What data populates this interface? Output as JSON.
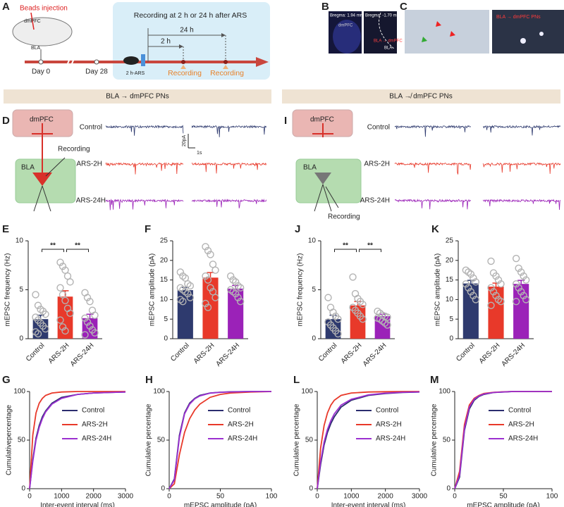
{
  "panel_a": {
    "letter": "A",
    "injection": "Beads injection",
    "region_top": "dmPFC",
    "region_bottom": "BLA",
    "day_start": "Day 0",
    "day_later": "Day 28",
    "stress": "2 h-ARS",
    "box_title": "Recording at 2 h or 24 h after ARS",
    "long_interval": "24 h",
    "short_interval": "2 h",
    "recording_early": "Recording",
    "recording_late": "Recording"
  },
  "panel_b": {
    "letter": "B",
    "bregma_front": "Bregma: 1.94 mm",
    "region_front": "dmPFC",
    "bregma_back": "Bregma: -1.70 mm",
    "projection": "BLA → dmPFC",
    "region_back": "BLA"
  },
  "panel_c": {
    "letter": "C",
    "label": "BLA → dmPFC PNs"
  },
  "sections": [
    "BLA → dmPFC PNs",
    "BLA ↛ dmPFC PNs"
  ],
  "panel_d": {
    "letter": "D",
    "region_top": "dmPFC",
    "region_bottom": "BLA",
    "electrode": "Recording",
    "traces": [
      "Control",
      "ARS-2H",
      "ARS-24H"
    ],
    "scale_y": "20pA",
    "scale_x": "1s"
  },
  "panel_i": {
    "letter": "I",
    "region_top": "dmPFC",
    "region_bottom": "BLA",
    "electrode": "Recording",
    "traces": [
      "Control",
      "ARS-2H",
      "ARS-24H"
    ]
  },
  "chart_data": [
    {
      "type": "bar",
      "panel": "E",
      "ylabel": "mEPSC frequency (Hz)",
      "categories": [
        "Control",
        "ARS-2H",
        "ARS-24H"
      ],
      "values": [
        2.0,
        4.3,
        2.1
      ],
      "errors": [
        0.4,
        0.6,
        0.4
      ],
      "colors": [
        "#2e3a6e",
        "#e8392a",
        "#9b22b8"
      ],
      "points": [
        [
          4.5,
          3.4,
          3.0,
          2.8,
          2.5,
          2.2,
          1.9,
          1.6,
          1.3,
          1.0,
          0.7,
          0.5
        ],
        [
          7.8,
          7.4,
          7.0,
          6.4,
          5.8,
          5.2,
          4.5,
          3.9,
          3.1,
          2.6,
          1.9,
          1.2,
          0.8
        ],
        [
          4.7,
          4.2,
          3.8,
          2.9,
          2.4,
          2.1,
          1.7,
          1.3,
          0.9,
          0.6,
          0.4
        ]
      ],
      "ylim": [
        0,
        10
      ],
      "yticks": [
        0,
        5,
        10
      ],
      "annotations": [
        "**",
        "**"
      ]
    },
    {
      "type": "bar",
      "panel": "F",
      "ylabel": "mEPSC amplitude (pA)",
      "categories": [
        "Control",
        "ARS-2H",
        "ARS-24H"
      ],
      "values": [
        12.4,
        15.6,
        12.8
      ],
      "errors": [
        0.7,
        1.3,
        0.8
      ],
      "colors": [
        "#2e3a6e",
        "#e8392a",
        "#9b22b8"
      ],
      "points": [
        [
          17,
          16,
          15.5,
          14,
          13.5,
          13,
          12.5,
          12,
          11.5,
          10.5,
          10,
          9.5
        ],
        [
          23.5,
          22.5,
          21.5,
          19,
          17.5,
          16,
          15,
          13,
          12,
          10.5,
          9,
          8
        ],
        [
          16,
          15,
          14.5,
          13.5,
          13,
          12.5,
          12,
          11.5,
          10.5,
          9.5
        ]
      ],
      "ylim": [
        0,
        25
      ],
      "yticks": [
        0,
        5,
        10,
        15,
        20,
        25
      ]
    },
    {
      "type": "bar",
      "panel": "J",
      "ylabel": "mEPSC frequency (Hz)",
      "categories": [
        "Control",
        "ARS-2H",
        "ARS-24H"
      ],
      "values": [
        2.0,
        3.4,
        2.3
      ],
      "errors": [
        0.4,
        0.4,
        0.2
      ],
      "colors": [
        "#2e3a6e",
        "#e8392a",
        "#9b22b8"
      ],
      "points": [
        [
          4.2,
          3.2,
          2.7,
          2.3,
          2.0,
          1.7,
          1.4,
          1.1,
          0.8,
          0.5
        ],
        [
          6.3,
          4.6,
          4.1,
          3.8,
          3.5,
          3.2,
          2.9,
          2.6,
          2.3,
          2.0
        ],
        [
          2.8,
          2.6,
          2.4,
          2.3,
          2.2,
          2.1,
          2.0,
          1.8,
          1.6,
          1.4
        ]
      ],
      "ylim": [
        0,
        10
      ],
      "yticks": [
        0,
        5,
        10
      ],
      "annotations": [
        "**",
        "**"
      ]
    },
    {
      "type": "bar",
      "panel": "K",
      "ylabel": "mEPSC amplitude (pA)",
      "categories": [
        "Control",
        "ARS-2H",
        "ARS-24H"
      ],
      "values": [
        14.1,
        13.3,
        14.0
      ],
      "errors": [
        0.8,
        0.9,
        0.9
      ],
      "colors": [
        "#2e3a6e",
        "#e8392a",
        "#9b22b8"
      ],
      "points": [
        [
          17.5,
          17,
          16.5,
          15.5,
          14.5,
          14,
          13,
          12,
          11,
          10
        ],
        [
          19.8,
          16.8,
          16,
          15,
          14,
          13,
          12,
          11,
          10,
          9.5,
          8.5
        ],
        [
          20.5,
          18,
          17,
          16,
          15,
          14,
          13,
          12,
          11,
          10,
          9.5
        ]
      ],
      "ylim": [
        0,
        25
      ],
      "yticks": [
        0,
        5,
        10,
        15,
        20,
        25
      ]
    },
    {
      "type": "line",
      "panel": "G",
      "xlabel": "Inter-event interval (ms)",
      "ylabel": "Cumulativepercentage",
      "x": [
        0,
        100,
        200,
        300,
        400,
        500,
        700,
        1000,
        1500,
        2000,
        2500,
        3000
      ],
      "series": [
        {
          "name": "Control",
          "color": "#2b2d6e",
          "values": [
            0,
            30,
            52,
            65,
            74,
            80,
            88,
            94,
            97,
            98.5,
            99,
            99.5
          ]
        },
        {
          "name": "ARS-2H",
          "color": "#e8392a",
          "values": [
            0,
            55,
            78,
            88,
            93,
            96,
            98.5,
            99.5,
            100,
            100,
            100,
            100
          ]
        },
        {
          "name": "ARS-24H",
          "color": "#9b30d0",
          "values": [
            0,
            28,
            50,
            63,
            72,
            79,
            87,
            93,
            97,
            98.5,
            99,
            99.5
          ]
        }
      ],
      "xlim": [
        0,
        3000
      ],
      "xticks": [
        0,
        1000,
        2000,
        3000
      ],
      "ylim": [
        0,
        100
      ],
      "yticks": [
        0,
        50,
        100
      ],
      "legend": "right"
    },
    {
      "type": "line",
      "panel": "H",
      "xlabel": "mEPSC amplitude (pA)",
      "ylabel": "Cumulative percentage",
      "x": [
        0,
        5,
        10,
        15,
        20,
        25,
        30,
        40,
        50,
        60,
        80,
        100
      ],
      "series": [
        {
          "name": "Control",
          "color": "#2b2d6e",
          "values": [
            0,
            10,
            55,
            78,
            88,
            93,
            96,
            98.5,
            99.3,
            99.7,
            100,
            100
          ]
        },
        {
          "name": "ARS-2H",
          "color": "#e8392a",
          "values": [
            0,
            5,
            35,
            58,
            72,
            81,
            87,
            94,
            97,
            98.5,
            99.5,
            100
          ]
        },
        {
          "name": "ARS-24H",
          "color": "#9b30d0",
          "values": [
            0,
            9,
            53,
            77,
            87,
            92.5,
            95.5,
            98.3,
            99.2,
            99.6,
            100,
            100
          ]
        }
      ],
      "xlim": [
        0,
        100
      ],
      "xticks": [
        0,
        50,
        100
      ],
      "ylim": [
        0,
        100
      ],
      "yticks": [
        0,
        50,
        100
      ],
      "legend": "right"
    },
    {
      "type": "line",
      "panel": "L",
      "xlabel": "Inter-event interval (ms)",
      "ylabel": "Cumulative percentage",
      "x": [
        0,
        100,
        200,
        300,
        400,
        500,
        700,
        1000,
        1500,
        2000,
        2500,
        3000
      ],
      "series": [
        {
          "name": "Control",
          "color": "#2b2d6e",
          "values": [
            0,
            25,
            45,
            58,
            67,
            74,
            84,
            91,
            96,
            98,
            99,
            99.5
          ]
        },
        {
          "name": "ARS-2H",
          "color": "#e8392a",
          "values": [
            0,
            42,
            65,
            78,
            86,
            91,
            96,
            98.5,
            99.5,
            99.8,
            100,
            100
          ]
        },
        {
          "name": "ARS-24H",
          "color": "#9b30d0",
          "values": [
            0,
            28,
            48,
            61,
            70,
            77,
            86,
            92,
            96.5,
            98.3,
            99.2,
            99.6
          ]
        }
      ],
      "xlim": [
        0,
        3000
      ],
      "xticks": [
        0,
        1000,
        2000,
        3000
      ],
      "ylim": [
        0,
        100
      ],
      "yticks": [
        0,
        50,
        100
      ],
      "legend": "right"
    },
    {
      "type": "line",
      "panel": "M",
      "xlabel": "mEPSC amplitude (pA)",
      "ylabel": "Cumulative percentage",
      "x": [
        0,
        5,
        10,
        15,
        20,
        25,
        30,
        40,
        50,
        60,
        80,
        100
      ],
      "series": [
        {
          "name": "Control",
          "color": "#2b2d6e",
          "values": [
            0,
            12,
            60,
            82,
            91,
            95,
            97,
            99,
            99.5,
            100,
            100,
            100
          ]
        },
        {
          "name": "ARS-2H",
          "color": "#e8392a",
          "values": [
            0,
            18,
            66,
            86,
            93,
            96,
            98,
            99.2,
            99.7,
            100,
            100,
            100
          ]
        },
        {
          "name": "ARS-24H",
          "color": "#9b30d0",
          "values": [
            0,
            14,
            62,
            84,
            92,
            95.5,
            97.5,
            99,
            99.6,
            100,
            100,
            100
          ]
        }
      ],
      "xlim": [
        0,
        100
      ],
      "xticks": [
        0,
        50,
        100
      ],
      "ylim": [
        0,
        100
      ],
      "yticks": [
        0,
        50,
        100
      ],
      "legend": "right"
    }
  ]
}
